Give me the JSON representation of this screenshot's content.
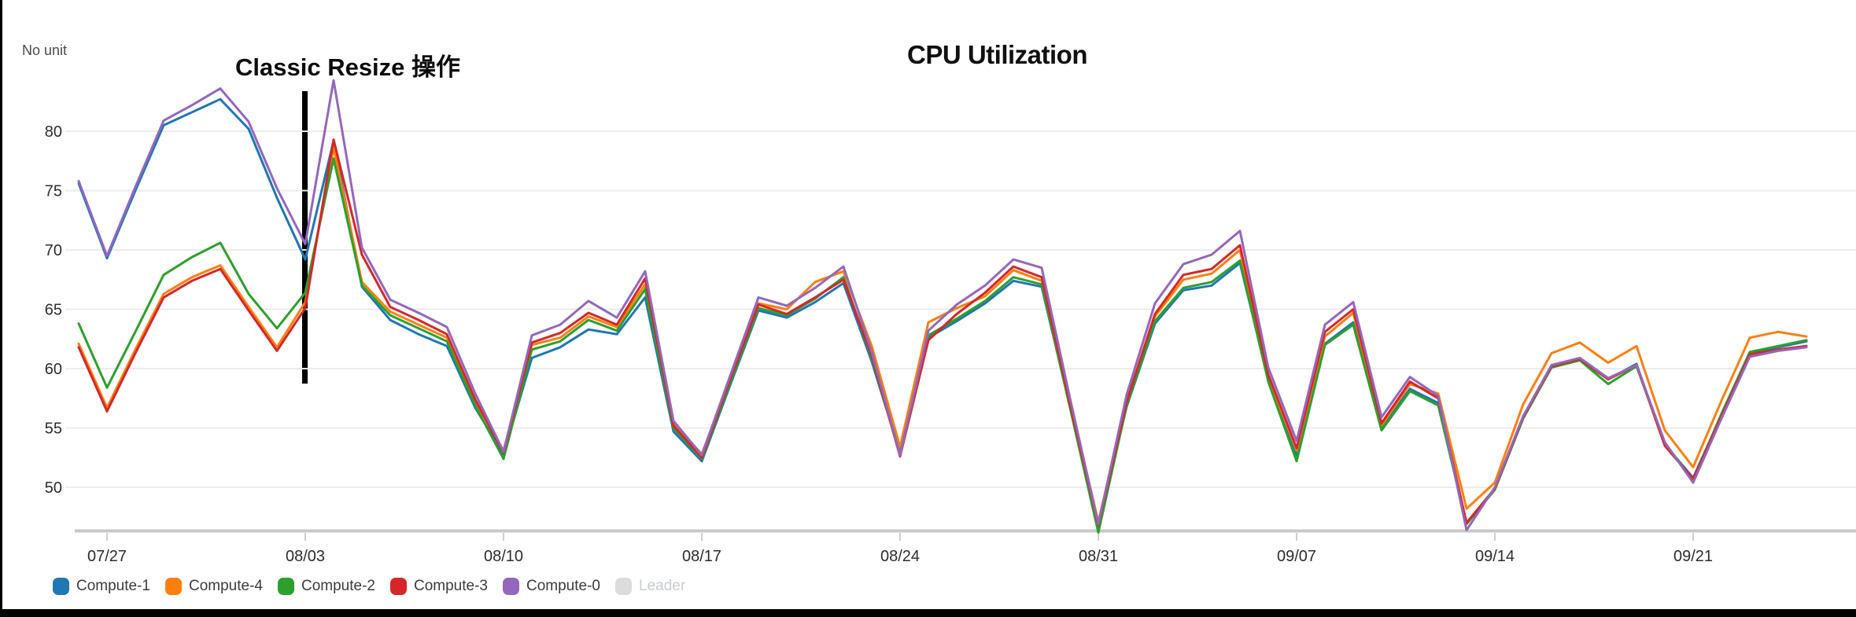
{
  "chart_data": {
    "type": "line",
    "title": "CPU Utilization",
    "ylabel": "No unit",
    "annotation": {
      "label": "Classic Resize 操作",
      "at_tick": "08/03"
    },
    "grid": "horizontal",
    "legend_position": "bottom-left",
    "x_tick_labels": [
      "07/27",
      "08/03",
      "08/10",
      "08/17",
      "08/24",
      "08/31",
      "09/07",
      "09/14",
      "09/21"
    ],
    "y_tick_labels": [
      80,
      75,
      70,
      65,
      60,
      55,
      50
    ],
    "ylim": [
      46.3,
      85.5
    ],
    "dates": [
      "07/26",
      "07/27",
      "07/28",
      "07/29",
      "07/30",
      "07/31",
      "08/01",
      "08/02",
      "08/03",
      "08/04",
      "08/05",
      "08/06",
      "08/07",
      "08/08",
      "08/09",
      "08/10",
      "08/11",
      "08/12",
      "08/13",
      "08/14",
      "08/15",
      "08/16",
      "08/17",
      "08/18",
      "08/19",
      "08/20",
      "08/21",
      "08/22",
      "08/23",
      "08/24",
      "08/25",
      "08/26",
      "08/27",
      "08/28",
      "08/29",
      "08/30",
      "08/31",
      "09/01",
      "09/02",
      "09/03",
      "09/04",
      "09/05",
      "09/06",
      "09/07",
      "09/08",
      "09/09",
      "09/10",
      "09/11",
      "09/12",
      "09/13",
      "09/14",
      "09/15",
      "09/16",
      "09/17",
      "09/18",
      "09/19",
      "09/20",
      "09/21",
      "09/22",
      "09/23",
      "09/24",
      "09/25"
    ],
    "series": [
      {
        "name": "Compute-1",
        "color": "#1f77b4",
        "disabled": false,
        "values": [
          75.6,
          69.3,
          75.0,
          80.5,
          81.6,
          82.7,
          80.2,
          74.4,
          69.2,
          79.2,
          66.9,
          64.1,
          62.9,
          61.9,
          56.7,
          52.8,
          60.9,
          61.8,
          63.3,
          62.9,
          66.0,
          54.7,
          52.2,
          58.6,
          64.9,
          64.3,
          65.6,
          67.2,
          60.6,
          52.9,
          62.6,
          64.0,
          65.5,
          67.4,
          66.9,
          56.8,
          46.7,
          56.8,
          63.8,
          66.6,
          67.0,
          68.9,
          59.1,
          52.7,
          62.1,
          63.9,
          55.0,
          58.3,
          57.1,
          47.0,
          49.9,
          55.9,
          60.2,
          60.8,
          59.1,
          60.4,
          53.6,
          50.8,
          56.1,
          61.3,
          61.8,
          62.3
        ]
      },
      {
        "name": "Compute-4",
        "color": "#ff7f0e",
        "disabled": false,
        "values": [
          62.1,
          56.7,
          61.6,
          66.3,
          67.7,
          68.7,
          65.2,
          61.8,
          65.6,
          78.6,
          67.3,
          64.8,
          63.7,
          62.6,
          57.2,
          53.1,
          62.0,
          62.6,
          64.4,
          63.5,
          67.1,
          55.4,
          52.8,
          59.2,
          65.5,
          65.0,
          67.3,
          68.2,
          61.9,
          53.4,
          63.9,
          65.1,
          66.1,
          68.3,
          67.4,
          57.2,
          47.1,
          57.3,
          64.4,
          67.5,
          68.0,
          70.0,
          59.3,
          53.1,
          62.7,
          64.7,
          55.2,
          58.7,
          57.9,
          48.2,
          50.4,
          57.0,
          61.3,
          62.2,
          60.5,
          61.9,
          54.8,
          51.7,
          57.3,
          62.6,
          63.1,
          62.7
        ]
      },
      {
        "name": "Compute-2",
        "color": "#2ca02c",
        "disabled": false,
        "values": [
          63.8,
          58.4,
          63.1,
          67.9,
          69.4,
          70.6,
          66.3,
          63.4,
          66.4,
          77.7,
          67.0,
          64.5,
          63.4,
          62.3,
          56.9,
          52.4,
          61.6,
          62.3,
          64.1,
          63.2,
          66.7,
          55.0,
          52.4,
          58.8,
          65.1,
          64.5,
          65.9,
          67.7,
          60.9,
          52.8,
          62.8,
          64.2,
          65.7,
          67.7,
          67.1,
          56.7,
          46.2,
          56.9,
          64.0,
          66.8,
          67.3,
          69.1,
          58.9,
          52.2,
          62.0,
          63.7,
          54.8,
          58.1,
          56.9,
          46.9,
          49.8,
          55.8,
          60.1,
          60.7,
          58.7,
          60.2,
          53.7,
          50.6,
          56.2,
          61.4,
          61.9,
          62.4
        ]
      },
      {
        "name": "Compute-3",
        "color": "#d62728",
        "disabled": false,
        "values": [
          61.8,
          56.4,
          61.3,
          66.0,
          67.4,
          68.4,
          64.9,
          61.5,
          65.1,
          79.3,
          69.6,
          65.2,
          64.1,
          62.9,
          57.4,
          52.9,
          62.2,
          63.0,
          64.7,
          63.7,
          67.6,
          55.2,
          52.5,
          59.1,
          65.4,
          64.6,
          66.0,
          67.5,
          61.1,
          52.6,
          62.4,
          64.6,
          66.4,
          68.6,
          67.7,
          57.0,
          46.8,
          57.2,
          64.6,
          67.9,
          68.4,
          70.4,
          59.5,
          53.3,
          63.1,
          65.0,
          55.4,
          58.9,
          57.5,
          47.0,
          49.9,
          55.9,
          60.2,
          60.8,
          59.1,
          60.3,
          53.5,
          50.7,
          56.0,
          61.2,
          61.6,
          61.9
        ]
      },
      {
        "name": "Compute-0",
        "color": "#9467bd",
        "disabled": false,
        "values": [
          75.8,
          69.5,
          75.3,
          80.9,
          82.2,
          83.6,
          80.8,
          75.2,
          70.5,
          84.3,
          70.2,
          65.8,
          64.7,
          63.5,
          57.9,
          53.0,
          62.8,
          63.7,
          65.7,
          64.3,
          68.2,
          55.6,
          52.7,
          59.4,
          66.0,
          65.3,
          66.8,
          68.6,
          61.4,
          52.7,
          63.2,
          65.4,
          67.0,
          69.2,
          68.5,
          57.5,
          46.9,
          57.8,
          65.5,
          68.8,
          69.6,
          71.6,
          60.1,
          53.9,
          63.7,
          65.6,
          55.9,
          59.3,
          57.7,
          46.4,
          50.0,
          56.0,
          60.3,
          60.9,
          59.2,
          60.3,
          53.8,
          50.4,
          55.8,
          61.0,
          61.5,
          61.8
        ]
      },
      {
        "name": "Leader",
        "color": "#dcdcdc",
        "disabled": true,
        "values": []
      }
    ]
  },
  "colors": {
    "gridline": "#ececec",
    "axis_line": "#c8c8c8",
    "tick_mark": "#cfcfcf",
    "tick_label": "#2d2d2d",
    "annotation_line": "#000000"
  }
}
